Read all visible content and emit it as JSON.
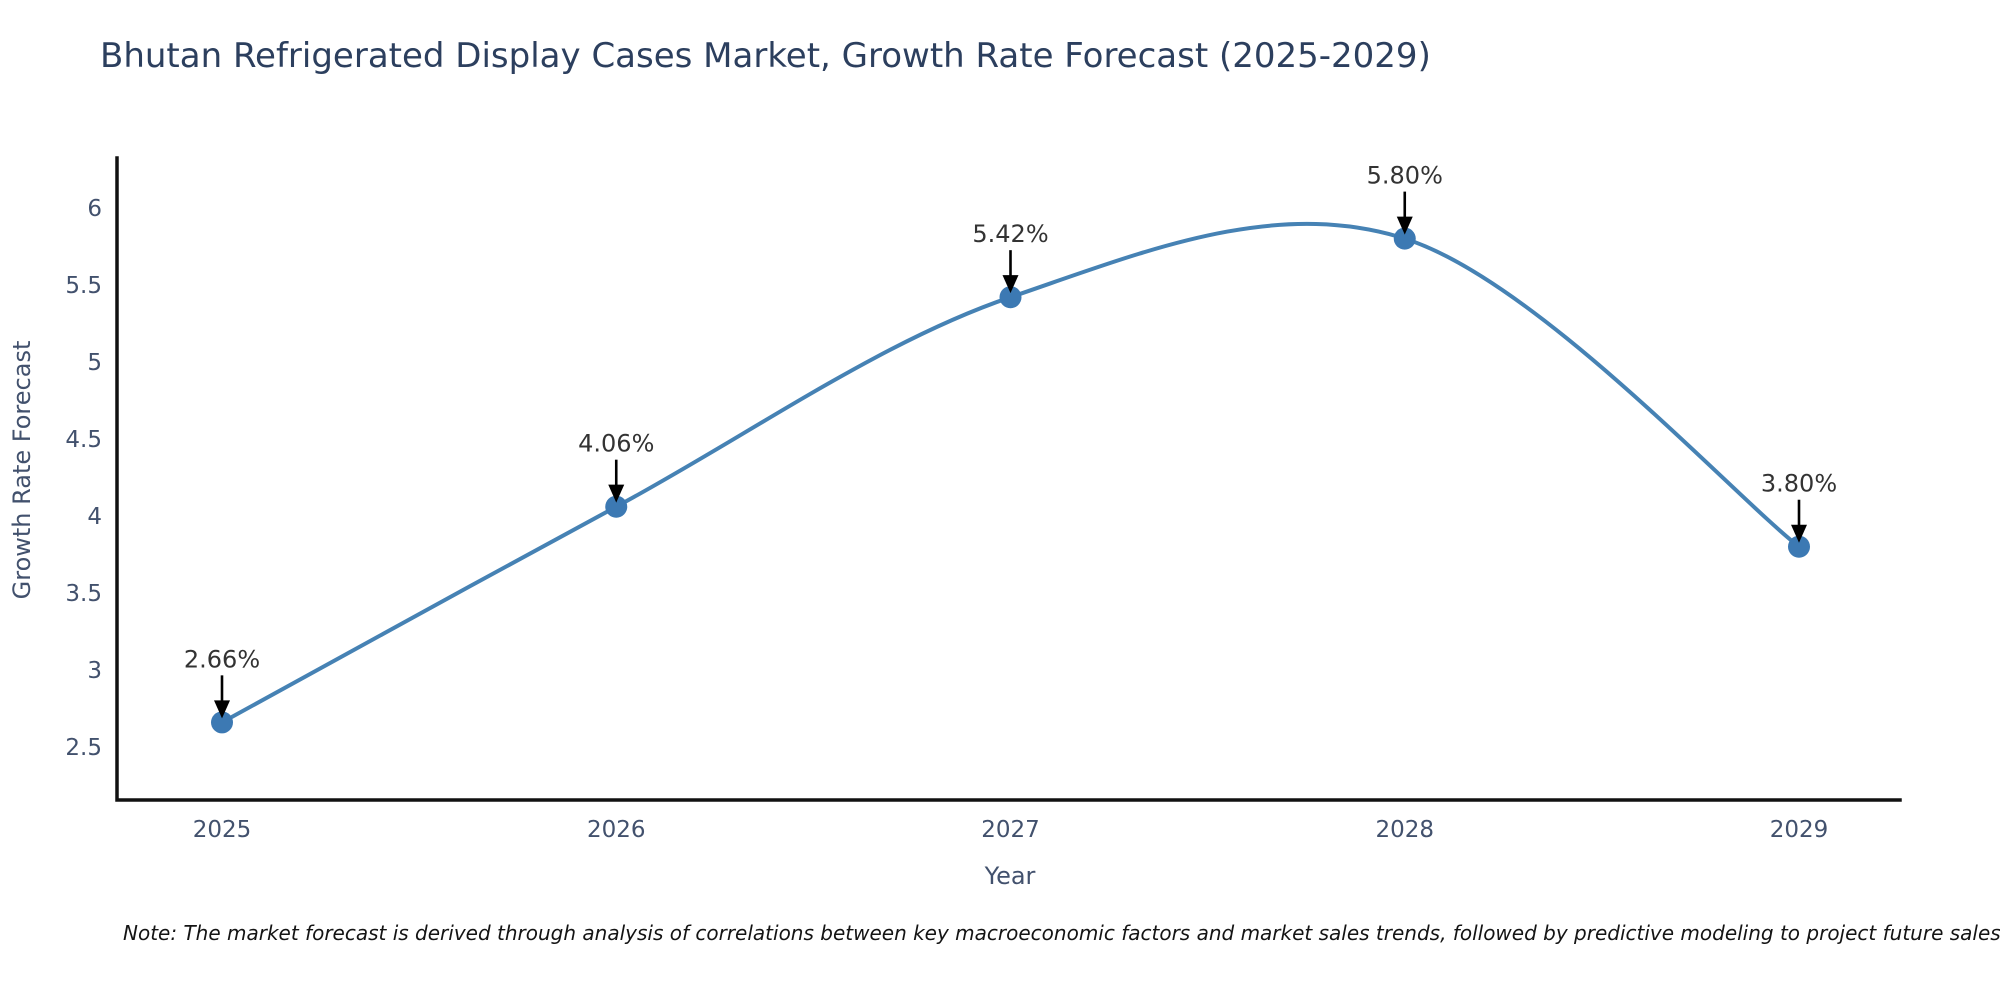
{
  "title": "Bhutan Refrigerated Display Cases Market, Growth Rate Forecast (2025-2029)",
  "note": "Note: The market forecast is derived through analysis of correlations between key macroeconomic factors and market sales trends, followed by predictive modeling to project future sales",
  "chart_data": {
    "type": "line",
    "line_shape": "spline",
    "title": "Bhutan Refrigerated Display Cases Market, Growth Rate Forecast (2025-2029)",
    "xlabel": "Year",
    "ylabel": "Growth Rate Forecast",
    "x": [
      2025,
      2026,
      2027,
      2028,
      2029
    ],
    "x_tick_labels": [
      "2025",
      "2026",
      "2027",
      "2028",
      "2029"
    ],
    "series": [
      {
        "name": "Growth Rate Forecast",
        "values": [
          2.66,
          4.06,
          5.42,
          5.8,
          3.8
        ]
      }
    ],
    "point_labels": [
      "2.66%",
      "4.06%",
      "5.42%",
      "5.80%",
      "3.80%"
    ],
    "y_ticks": [
      2.5,
      3,
      3.5,
      4,
      4.5,
      5,
      5.5,
      6
    ],
    "ylim": [
      2.15,
      6.35
    ],
    "grid": false,
    "legend": "none",
    "colors": {
      "line": "#4682b4",
      "marker": "#3c79b3",
      "axis": "#111111",
      "tick_label": "#42516d",
      "axis_title": "#42516d",
      "title": "#2c3f5e",
      "annotation_text": "#333333",
      "arrow": "#000000"
    }
  }
}
